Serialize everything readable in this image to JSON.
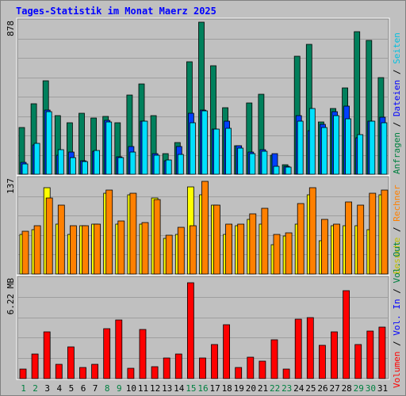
{
  "title": "Tages-Statistik im Monat Maerz 2025",
  "colors": {
    "background": "#C0C0C0",
    "frame": "#FFFFFF",
    "title": "#0000FF",
    "grid": "#9E9E9E",
    "anfragen": "#00805C",
    "dateien": "#0040FF",
    "seiten": "#00E0FF",
    "besuche": "#FFFF00",
    "rechner": "#FF8000",
    "volumen": "#FF0000",
    "weekday_label": "#000000",
    "weekend_label": "#008040",
    "right_label_default": "#008040"
  },
  "right_labels": {
    "top": [
      {
        "text": "Anfragen",
        "color": "#008040"
      },
      {
        "text": " / ",
        "color": "#000000"
      },
      {
        "text": "Dateien",
        "color": "#0000FF"
      },
      {
        "text": " / ",
        "color": "#000000"
      },
      {
        "text": "Seiten",
        "color": "#00C0E0"
      }
    ],
    "middle": [
      {
        "text": "Besuche",
        "color": "#C0C000"
      },
      {
        "text": " / ",
        "color": "#000000"
      },
      {
        "text": "Rechner",
        "color": "#FF8000"
      }
    ],
    "bottom": [
      {
        "text": "Volumen",
        "color": "#FF0000"
      },
      {
        "text": " / ",
        "color": "#000000"
      },
      {
        "text": "Vol. In",
        "color": "#0000FF"
      },
      {
        "text": " / ",
        "color": "#000000"
      },
      {
        "text": "Vol. Out",
        "color": "#008040"
      }
    ],
    "joined": "Volumen / Vol. In / Vol. Out / Rechner / Besuche / Seiten / Dateien / Anfragen"
  },
  "chart_data": [
    {
      "type": "bar",
      "panel": "requests",
      "ylabel": "878",
      "ymax": 878,
      "categories": [
        "1",
        "2",
        "3",
        "4",
        "5",
        "6",
        "7",
        "8",
        "9",
        "10",
        "11",
        "12",
        "13",
        "14",
        "15",
        "16",
        "17",
        "18",
        "19",
        "20",
        "21",
        "22",
        "23",
        "24",
        "25",
        "26",
        "27",
        "28",
        "29",
        "30",
        "31"
      ],
      "weekend_days": [
        1,
        2,
        8,
        9,
        15,
        16,
        22,
        23,
        29,
        30
      ],
      "series": [
        {
          "name": "Anfragen",
          "color": "#00805C",
          "values": [
            270,
            408,
            540,
            340,
            298,
            354,
            325,
            336,
            295,
            456,
            520,
            340,
            120,
            185,
            650,
            878,
            625,
            386,
            165,
            410,
            460,
            110,
            55,
            680,
            750,
            302,
            378,
            500,
            825,
            775,
            560
          ]
        },
        {
          "name": "Dateien",
          "color": "#0040FF",
          "values": [
            70,
            170,
            370,
            110,
            128,
            80,
            132,
            310,
            100,
            160,
            308,
            120,
            78,
            160,
            350,
            370,
            260,
            308,
            165,
            130,
            140,
            120,
            45,
            340,
            250,
            290,
            360,
            395,
            210,
            305,
            330
          ]
        },
        {
          "name": "Seiten",
          "color": "#00E0FF",
          "values": [
            58,
            180,
            360,
            140,
            96,
            72,
            136,
            300,
            95,
            130,
            305,
            110,
            82,
            114,
            298,
            365,
            260,
            265,
            150,
            120,
            132,
            48,
            40,
            305,
            380,
            270,
            340,
            320,
            230,
            305,
            295
          ]
        }
      ]
    },
    {
      "type": "bar",
      "panel": "visits",
      "ylabel": "137",
      "ymax": 137,
      "categories": [
        "1",
        "2",
        "3",
        "4",
        "5",
        "6",
        "7",
        "8",
        "9",
        "10",
        "11",
        "12",
        "13",
        "14",
        "15",
        "16",
        "17",
        "18",
        "19",
        "20",
        "21",
        "22",
        "23",
        "24",
        "25",
        "26",
        "27",
        "28",
        "29",
        "30",
        "31"
      ],
      "series": [
        {
          "name": "Besuche",
          "color": "#FFFF00",
          "values": [
            58,
            65,
            125,
            72,
            58,
            70,
            72,
            117,
            72,
            115,
            73,
            110,
            52,
            58,
            127,
            115,
            100,
            58,
            70,
            80,
            72,
            43,
            55,
            73,
            115,
            48,
            70,
            70,
            70,
            65,
            115
          ]
        },
        {
          "name": "Rechner",
          "color": "#FF8000",
          "values": [
            62,
            70,
            110,
            100,
            70,
            70,
            73,
            122,
            77,
            118,
            75,
            108,
            56,
            68,
            70,
            135,
            100,
            73,
            73,
            88,
            95,
            58,
            60,
            103,
            125,
            80,
            72,
            105,
            100,
            118,
            122
          ]
        }
      ]
    },
    {
      "type": "bar",
      "panel": "volume",
      "ylabel": "6.22 MB",
      "ymax": 6.22,
      "unit": "MB",
      "categories": [
        "1",
        "2",
        "3",
        "4",
        "5",
        "6",
        "7",
        "8",
        "9",
        "10",
        "11",
        "12",
        "13",
        "14",
        "15",
        "16",
        "17",
        "18",
        "19",
        "20",
        "21",
        "22",
        "23",
        "24",
        "25",
        "26",
        "27",
        "28",
        "29",
        "30",
        "31"
      ],
      "series": [
        {
          "name": "Volumen",
          "color": "#FF0000",
          "values": [
            0.62,
            1.52,
            2.95,
            0.92,
            2.0,
            0.7,
            0.92,
            3.15,
            3.7,
            0.65,
            3.1,
            0.76,
            1.3,
            1.52,
            6.0,
            1.3,
            2.12,
            3.4,
            0.7,
            1.36,
            1.1,
            2.42,
            0.6,
            3.75,
            3.85,
            2.1,
            2.95,
            5.5,
            2.12,
            3.0,
            3.25
          ]
        }
      ]
    }
  ]
}
